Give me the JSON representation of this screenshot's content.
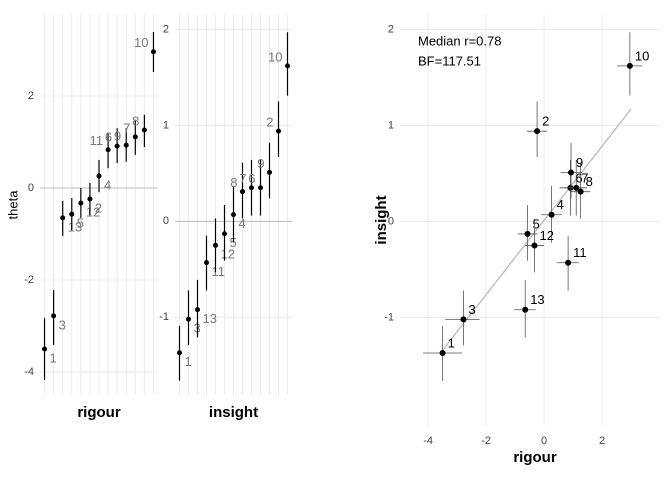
{
  "chart_data": [
    {
      "type": "caterpillar",
      "xlabel": "rigour",
      "ylabel": "theta",
      "categories": [
        "1",
        "3",
        "13",
        "5",
        "12",
        "2",
        "4",
        "11",
        "6",
        "9",
        "7",
        "8",
        "10"
      ],
      "values": [
        -3.5,
        -2.78,
        -0.65,
        -0.57,
        -0.33,
        -0.24,
        0.26,
        0.83,
        0.91,
        0.93,
        1.11,
        1.26,
        2.96
      ],
      "lower": [
        -4.17,
        -3.41,
        -1.04,
        -0.91,
        -0.65,
        -0.59,
        -0.09,
        0.43,
        0.54,
        0.57,
        0.72,
        0.89,
        2.52
      ],
      "upper": [
        -2.83,
        -2.22,
        -0.28,
        -0.22,
        0,
        0.11,
        0.61,
        1.2,
        1.3,
        1.3,
        1.48,
        1.59,
        3.39
      ],
      "ylim": [
        -4.5,
        3.76
      ],
      "yticks": [
        -4,
        -2,
        0,
        2
      ],
      "hline": 0,
      "color": "#000000",
      "label_color": "#777777"
    },
    {
      "type": "caterpillar",
      "xlabel": "insight",
      "categories": [
        "1",
        "3",
        "13",
        "11",
        "12",
        "5",
        "4",
        "8",
        "7",
        "6",
        "9",
        "2",
        "10"
      ],
      "values": [
        -1.37,
        -1.02,
        -0.92,
        -0.43,
        -0.25,
        -0.13,
        0.07,
        0.31,
        0.35,
        0.35,
        0.51,
        0.94,
        1.62
      ],
      "lower": [
        -1.66,
        -1.29,
        -1.21,
        -0.72,
        -0.53,
        -0.41,
        -0.22,
        0.03,
        0.06,
        0.06,
        0.24,
        0.67,
        1.31
      ],
      "upper": [
        -1.09,
        -0.72,
        -0.61,
        -0.15,
        0.03,
        0.17,
        0.37,
        0.61,
        0.64,
        0.64,
        0.82,
        1.25,
        1.97
      ],
      "ylim": [
        -1.81,
        2.15
      ],
      "yticks": [
        -1,
        0,
        1,
        2
      ],
      "hline": 0,
      "color": "#000000",
      "label_color": "#777777"
    },
    {
      "type": "scatter",
      "xlabel": "rigour",
      "ylabel": "insight",
      "annotations": [
        "Median r=0.78",
        "BF=117.51"
      ],
      "labels": [
        "1",
        "2",
        "3",
        "4",
        "5",
        "6",
        "7",
        "8",
        "9",
        "10",
        "11",
        "12",
        "13"
      ],
      "x": [
        -3.5,
        -0.24,
        -2.78,
        0.26,
        -0.57,
        0.91,
        1.11,
        1.26,
        0.93,
        2.96,
        0.83,
        -0.33,
        -0.65
      ],
      "y": [
        -1.37,
        0.94,
        -1.02,
        0.07,
        -0.13,
        0.35,
        0.35,
        0.31,
        0.51,
        1.62,
        -0.43,
        -0.25,
        -0.92
      ],
      "xlower": [
        -4.17,
        -0.59,
        -3.41,
        -0.09,
        -0.91,
        0.54,
        0.72,
        0.89,
        0.57,
        2.52,
        0.43,
        -0.65,
        -1.04
      ],
      "xupper": [
        -2.83,
        0.11,
        -2.22,
        0.61,
        -0.22,
        1.3,
        1.48,
        1.59,
        1.3,
        3.39,
        1.2,
        0,
        -0.28
      ],
      "ylower": [
        -1.66,
        0.67,
        -1.29,
        -0.22,
        -0.41,
        0.06,
        0.06,
        0.03,
        0.24,
        1.31,
        -0.72,
        -0.53,
        -1.21
      ],
      "yupper": [
        -1.09,
        1.25,
        -0.72,
        0.37,
        0.17,
        0.64,
        0.64,
        0.61,
        0.82,
        1.97,
        -0.15,
        0.03,
        -0.61
      ],
      "fit": {
        "x": [
          -3.6,
          3.0
        ],
        "y": [
          -1.38,
          1.17
        ],
        "color": "#bbbbbb"
      },
      "xlim": [
        -4.97,
        4.0
      ],
      "ylim": [
        -2.12,
        2.15
      ],
      "xticks": [
        -4,
        -2,
        0,
        2
      ],
      "yticks": [
        -1,
        0,
        1,
        2
      ],
      "color": "#000000"
    }
  ]
}
